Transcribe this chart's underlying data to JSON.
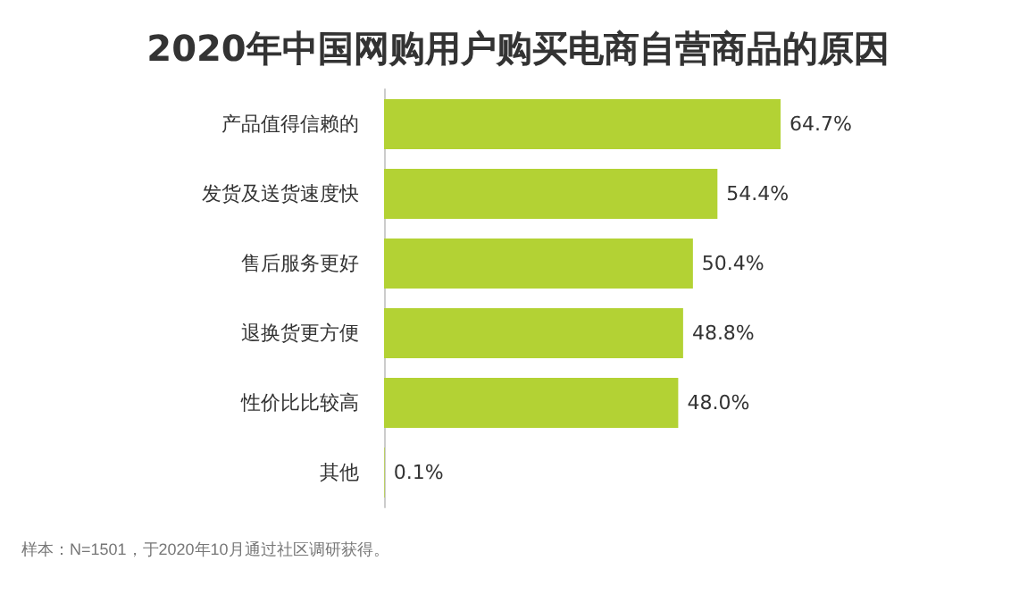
{
  "chart_data": {
    "type": "bar",
    "orientation": "horizontal",
    "tick_labels": "y",
    "title": "2020年中国网购用户购买电商自营商品的原因",
    "categories": [
      "产品值得信赖的",
      "发货及送货速度快",
      "售后服务更好",
      "退换货更方便",
      "性价比比较高",
      "其他"
    ],
    "values": [
      64.7,
      54.4,
      50.4,
      48.8,
      48.0,
      0.1
    ],
    "value_labels": [
      "64.7%",
      "54.4%",
      "50.4%",
      "48.8%",
      "48.0%",
      "0.1%"
    ],
    "color": "#b3d234",
    "annotations": [
      "样本：N=1501，于2020年10月通过社区调研获得。"
    ]
  }
}
